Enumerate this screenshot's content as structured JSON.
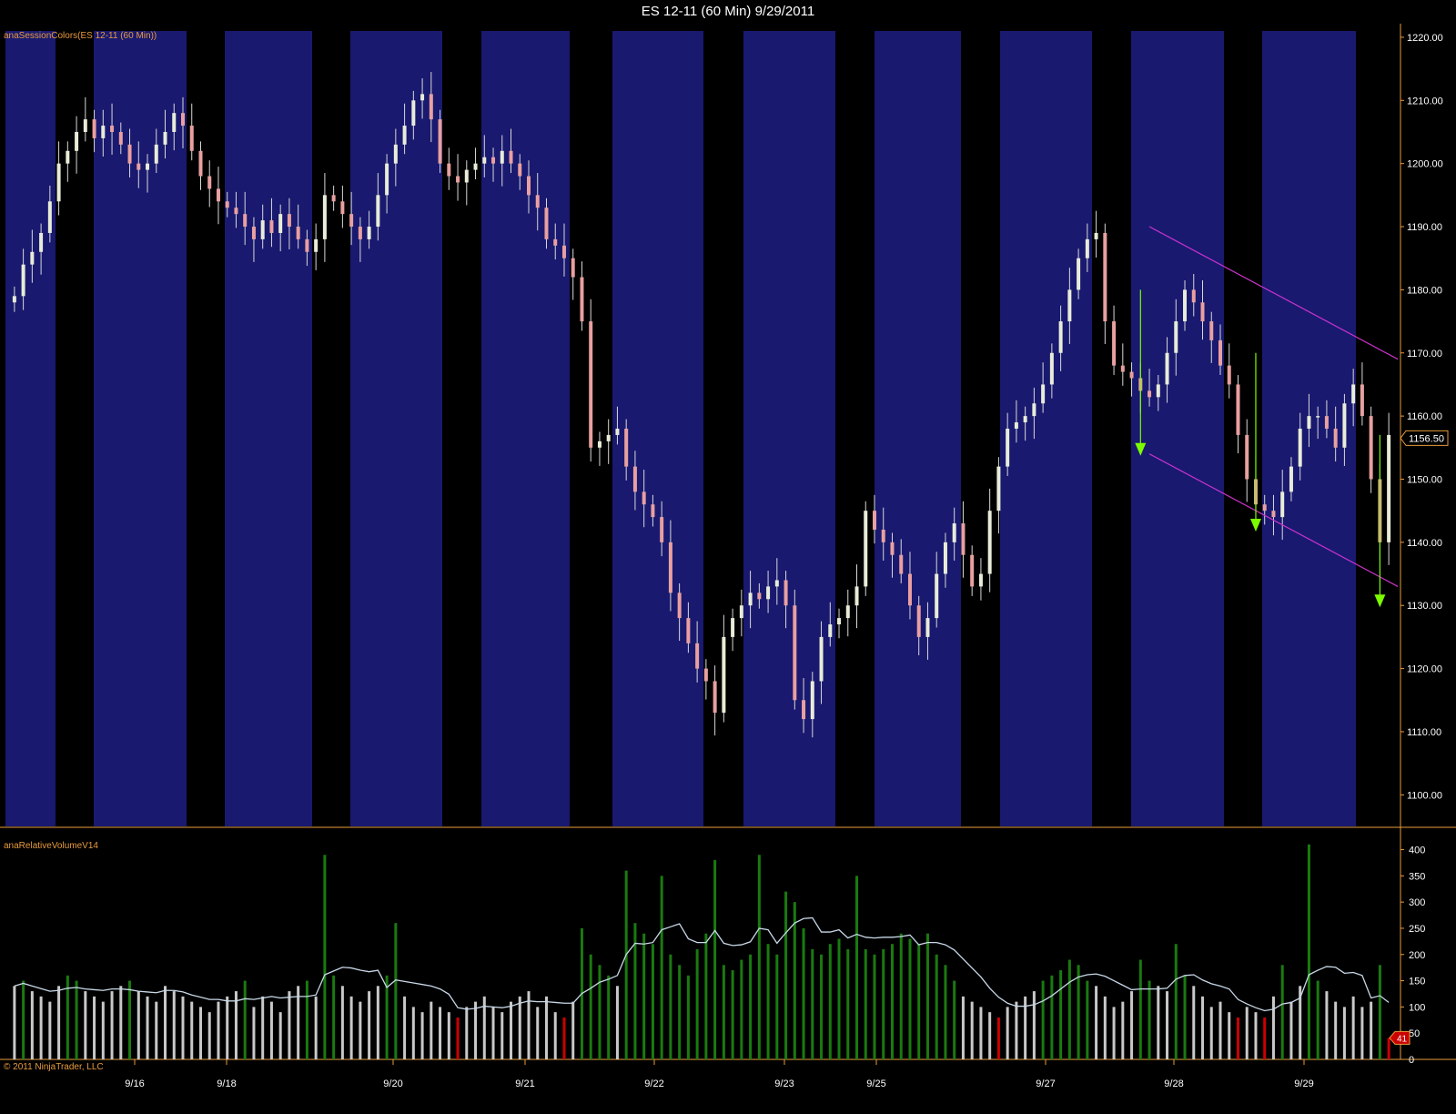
{
  "window": {
    "title": "ES 12-11 (60 Min)  9/29/2011"
  },
  "price_panel": {
    "indicator_label": "anaSessionColors(ES 12-11 (60 Min))",
    "last_price_label": "1156.50",
    "session_color": "#191970",
    "channel_color": "#cc33cc",
    "arrow_color": "#7cfc00",
    "up_candle_color": "#e8ecd8",
    "down_candle_color": "#e8a0a0"
  },
  "volume_panel": {
    "indicator_label": "anaRelativeVolumeV14",
    "last_value_label": "41",
    "bar_colors": {
      "high": "#1a7a10",
      "normal": "#c8c8c8",
      "low": "#cc0000"
    },
    "avg_line_color": "#c8d8e8"
  },
  "footer": {
    "copyright": "© 2011 NinjaTrader, LLC"
  },
  "chart_data": [
    {
      "type": "candlestick",
      "title": "ES 12-11 (60 Min)  9/29/2011",
      "x_tick_labels": [
        "9/16",
        "9/18",
        "9/20",
        "9/21",
        "9/22",
        "9/23",
        "9/25",
        "9/27",
        "9/28",
        "9/29"
      ],
      "y_tick_labels": [
        "1100.00",
        "1110.00",
        "1120.00",
        "1130.00",
        "1140.00",
        "1150.00",
        "1160.00",
        "1170.00",
        "1180.00",
        "1190.00",
        "1200.00",
        "1210.00",
        "1220.00"
      ],
      "ylim": [
        1095,
        1221
      ],
      "series": [
        {
          "name": "ES 12-11",
          "close": [
            1179,
            1184,
            1186,
            1189,
            1194,
            1200,
            1202,
            1205,
            1207,
            1204,
            1206,
            1205,
            1203,
            1200,
            1199,
            1200,
            1203,
            1205,
            1208,
            1206,
            1202,
            1198,
            1196,
            1194,
            1193,
            1192,
            1190,
            1188,
            1191,
            1189,
            1192,
            1190,
            1188,
            1186,
            1188,
            1195,
            1194,
            1192,
            1190,
            1188,
            1190,
            1195,
            1200,
            1203,
            1206,
            1210,
            1211,
            1207,
            1200,
            1198,
            1197,
            1199,
            1200,
            1201,
            1200,
            1202,
            1200,
            1198,
            1195,
            1193,
            1188,
            1187,
            1185,
            1182,
            1175,
            1155,
            1156,
            1157,
            1158,
            1152,
            1148,
            1146,
            1144,
            1140,
            1132,
            1128,
            1124,
            1120,
            1118,
            1113,
            1125,
            1128,
            1130,
            1132,
            1131,
            1133,
            1134,
            1130,
            1115,
            1112,
            1118,
            1125,
            1127,
            1128,
            1130,
            1133,
            1145,
            1142,
            1140,
            1138,
            1135,
            1130,
            1125,
            1128,
            1135,
            1140,
            1143,
            1138,
            1133,
            1135,
            1145,
            1152,
            1158,
            1159,
            1160,
            1162,
            1165,
            1170,
            1175,
            1180,
            1185,
            1188,
            1189,
            1175,
            1168,
            1167,
            1166,
            1164,
            1163,
            1165,
            1170,
            1175,
            1180,
            1178,
            1175,
            1172,
            1168,
            1165,
            1157,
            1150,
            1146,
            1145,
            1144,
            1148,
            1152,
            1158,
            1160,
            1160,
            1158,
            1155,
            1162,
            1165,
            1160,
            1150,
            1140,
            1157
          ],
          "volume": [
            140,
            150,
            130,
            120,
            110,
            140,
            160,
            150,
            130,
            120,
            110,
            130,
            140,
            150,
            130,
            120,
            110,
            140,
            130,
            120,
            110,
            100,
            90,
            110,
            120,
            130,
            150,
            100,
            120,
            110,
            90,
            130,
            140,
            150,
            120,
            390,
            160,
            140,
            120,
            110,
            130,
            140,
            160,
            260,
            120,
            100,
            90,
            110,
            100,
            90,
            80,
            100,
            110,
            120,
            100,
            90,
            110,
            120,
            130,
            100,
            120,
            90,
            80,
            110,
            250,
            200,
            180,
            160,
            140,
            360,
            260,
            240,
            220,
            350,
            200,
            180,
            160,
            210,
            240,
            380,
            180,
            170,
            190,
            200,
            390,
            220,
            200,
            320,
            300,
            250,
            210,
            200,
            220,
            230,
            210,
            350,
            210,
            200,
            210,
            220,
            240,
            230,
            220,
            240,
            200,
            180,
            150,
            120,
            110,
            100,
            90,
            80,
            100,
            110,
            120,
            130,
            150,
            160,
            170,
            190,
            180,
            150,
            140,
            120,
            100,
            110,
            130,
            190,
            150,
            140,
            130,
            220,
            160,
            140,
            120,
            100,
            110,
            90,
            80,
            100,
            90,
            80,
            120,
            180,
            110,
            140,
            410,
            150,
            130,
            110,
            100,
            120,
            100,
            110,
            180,
            41
          ]
        }
      ],
      "annotations": [
        {
          "type": "channel_line",
          "from": [
            "9/27",
            1190
          ],
          "to": [
            "9/29",
            1169
          ]
        },
        {
          "type": "channel_line",
          "from": [
            "9/27",
            1154
          ],
          "to": [
            "9/29",
            1133
          ]
        },
        {
          "type": "down_arrow",
          "from": 1180,
          "to": 1154
        },
        {
          "type": "down_arrow",
          "from": 1170,
          "to": 1142
        },
        {
          "type": "down_arrow",
          "from": 1157,
          "to": 1130
        }
      ]
    },
    {
      "type": "bar",
      "title": "anaRelativeVolumeV14",
      "y_tick_labels": [
        "0",
        "50",
        "100",
        "150",
        "200",
        "250",
        "300",
        "350",
        "400"
      ],
      "ylim": [
        0,
        420
      ]
    }
  ]
}
